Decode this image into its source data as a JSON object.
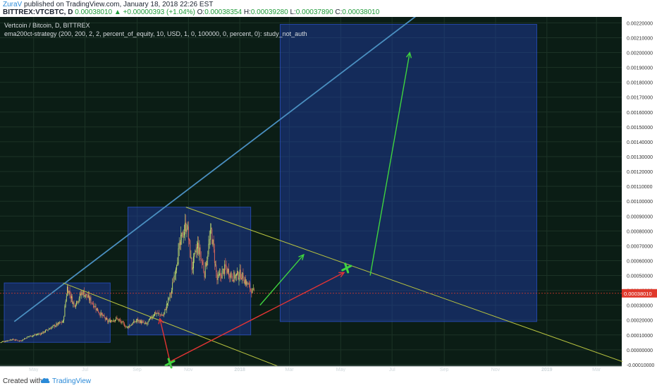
{
  "header": {
    "author": "ZuraV",
    "published_text": "published on TradingView.com, January 18, 2018 22:26 EST",
    "symbol": "BITTREX:VTCBTC, D",
    "change_arrow": "▲",
    "change": "+0.00000393 (+1.04%)",
    "close_value": "0.00038010",
    "ohlc": [
      {
        "label": "O:",
        "value": "0.00038354"
      },
      {
        "label": "H:",
        "value": "0.00039280"
      },
      {
        "label": "L:",
        "value": "0.00037890"
      },
      {
        "label": "C:",
        "value": "0.00038010"
      }
    ]
  },
  "footer": {
    "created_with": "Created with",
    "brand": "TradingView",
    "logo_icon": "cloud-logo-icon"
  },
  "colors": {
    "background": "#0b1d15",
    "grid": "#1c3326",
    "candle_up": "#c7e36c",
    "candle_down": "#e96c5a",
    "box": "#1f3fb0",
    "trendline": "#4a8fc0",
    "triangle": "#b7c23f",
    "arrow_green": "#3fd43f",
    "arrow_red": "#e23434",
    "price_tag": "#e0392b"
  },
  "chart_data": {
    "type": "candlestick",
    "title": "Vertcoin / Bitcoin, D, BITTREX",
    "indicator": "ema200ct-strategy (200, 200, 2, 2, percent_of_equity, 10, USD, 1, 0, 100000, 0, percent, 0): study_not_auth",
    "x_axis": {
      "range": [
        "2017-03-22",
        "2019-03-31"
      ],
      "ticks": [
        {
          "label": "May",
          "date": "2017-05-01"
        },
        {
          "label": "Jul",
          "date": "2017-07-01"
        },
        {
          "label": "Sep",
          "date": "2017-09-01"
        },
        {
          "label": "Nov",
          "date": "2017-11-01"
        },
        {
          "label": "2018",
          "date": "2018-01-01"
        },
        {
          "label": "Mar",
          "date": "2018-03-01"
        },
        {
          "label": "May",
          "date": "2018-05-01"
        },
        {
          "label": "Jul",
          "date": "2018-07-01"
        },
        {
          "label": "Sep",
          "date": "2018-09-01"
        },
        {
          "label": "Nov",
          "date": "2018-11-01"
        },
        {
          "label": "2019",
          "date": "2019-01-01"
        },
        {
          "label": "Mar",
          "date": "2019-03-01"
        }
      ]
    },
    "y_axis": {
      "range": [
        -0.00011,
        0.00224
      ],
      "ticks": [
        "0.00220000",
        "0.00210000",
        "0.00200000",
        "0.00190000",
        "0.00180000",
        "0.00170000",
        "0.00160000",
        "0.00150000",
        "0.00140000",
        "0.00130000",
        "0.00120000",
        "0.00110000",
        "0.00100000",
        "0.00090000",
        "0.00080000",
        "0.00070000",
        "0.00060000",
        "0.00050000",
        "0.00040000",
        "0.00030000",
        "0.00020000",
        "0.00010000",
        "0.00000000",
        "-0.00010000"
      ],
      "tick_values": [
        0.0022,
        0.0021,
        0.002,
        0.0019,
        0.0018,
        0.0017,
        0.0016,
        0.0015,
        0.0014,
        0.0013,
        0.0012,
        0.0011,
        0.001,
        0.0009,
        0.0008,
        0.0007,
        0.0006,
        0.0005,
        0.0004,
        0.0003,
        0.0002,
        0.0001,
        0.0,
        -0.0001
      ]
    },
    "last_price": {
      "label": "0.00038010",
      "value": 0.0003801
    },
    "price_path": [
      [
        "2017-03-22",
        5e-05
      ],
      [
        "2017-04-05",
        7e-05
      ],
      [
        "2017-04-15",
        6e-05
      ],
      [
        "2017-04-25",
        9e-05
      ],
      [
        "2017-05-10",
        0.00011
      ],
      [
        "2017-05-25",
        0.00016
      ],
      [
        "2017-06-05",
        0.00019
      ],
      [
        "2017-06-10",
        0.00042
      ],
      [
        "2017-06-18",
        0.0003
      ],
      [
        "2017-06-28",
        0.00039
      ],
      [
        "2017-07-08",
        0.00033
      ],
      [
        "2017-07-18",
        0.00025
      ],
      [
        "2017-07-28",
        0.00019
      ],
      [
        "2017-08-08",
        0.00021
      ],
      [
        "2017-08-20",
        0.00015
      ],
      [
        "2017-09-01",
        0.0002
      ],
      [
        "2017-09-12",
        0.00017
      ],
      [
        "2017-09-22",
        0.00025
      ],
      [
        "2017-10-02",
        0.00023
      ],
      [
        "2017-10-12",
        0.0004
      ],
      [
        "2017-10-18",
        0.0006
      ],
      [
        "2017-10-25",
        0.00078
      ],
      [
        "2017-10-30",
        0.00085
      ],
      [
        "2017-11-05",
        0.00055
      ],
      [
        "2017-11-12",
        0.0007
      ],
      [
        "2017-11-20",
        0.00052
      ],
      [
        "2017-11-28",
        0.0008
      ],
      [
        "2017-12-05",
        0.00047
      ],
      [
        "2017-12-15",
        0.00055
      ],
      [
        "2017-12-24",
        0.00049
      ],
      [
        "2018-01-02",
        0.00051
      ],
      [
        "2018-01-10",
        0.00044
      ],
      [
        "2018-01-18",
        0.00038
      ]
    ],
    "annotations": {
      "rectangles": [
        {
          "x0": "2017-03-27",
          "x1": "2017-07-31",
          "y0": 5e-05,
          "y1": 0.00045
        },
        {
          "x0": "2017-08-21",
          "x1": "2018-01-14",
          "y0": 0.0001,
          "y1": 0.00096
        },
        {
          "x0": "2018-02-18",
          "x1": "2018-12-20",
          "y0": 0.00019,
          "y1": 0.00219
        }
      ],
      "trendlines": [
        {
          "name": "support-trendline",
          "from": [
            "2017-04-08",
            0.00019
          ],
          "to": [
            "2018-09-15",
            0.00245
          ]
        },
        {
          "name": "triangle-upper-line",
          "from": [
            "2017-10-29",
            0.00096
          ],
          "to": [
            "2019-04-01",
            -8e-05
          ]
        },
        {
          "name": "triangle-lower-line",
          "from": [
            "2017-06-05",
            0.00045
          ],
          "to": [
            "2018-02-15",
            -0.00011
          ]
        }
      ],
      "arrows": [
        {
          "name": "green-arrow-near",
          "color": "green",
          "from": [
            "2018-01-25",
            0.0003
          ],
          "to": [
            "2018-03-18",
            0.00064
          ]
        },
        {
          "name": "green-arrow-target",
          "color": "green",
          "from": [
            "2018-06-05",
            0.0005
          ],
          "to": [
            "2018-07-22",
            0.002
          ]
        },
        {
          "name": "red-arrow-up",
          "color": "red",
          "from": [
            "2017-10-10",
            -8e-05
          ],
          "to": [
            "2017-09-28",
            0.00021
          ]
        },
        {
          "name": "red-arrow-right",
          "color": "red",
          "from": [
            "2017-10-10",
            -8e-05
          ],
          "to": [
            "2018-05-05",
            0.00052
          ]
        }
      ],
      "markers": [
        {
          "name": "cross-marker-bottom",
          "at": [
            "2017-10-10",
            -9e-05
          ]
        },
        {
          "name": "cross-marker-target",
          "at": [
            "2018-05-08",
            0.00055
          ]
        }
      ]
    }
  }
}
